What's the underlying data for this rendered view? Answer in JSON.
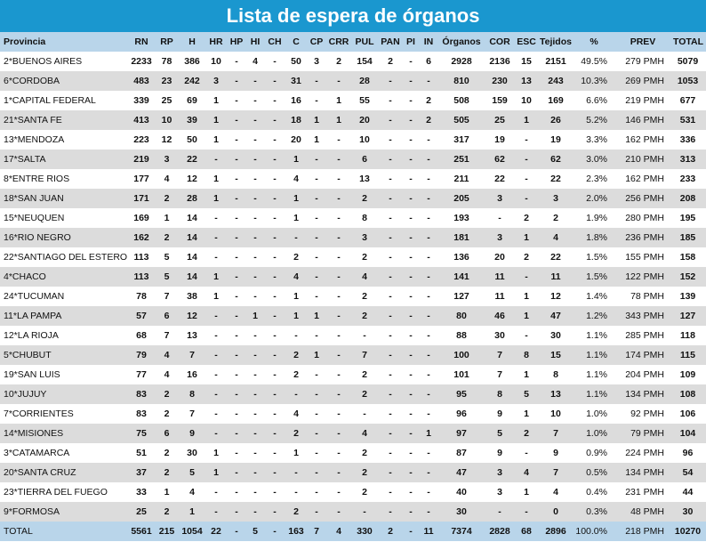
{
  "title": "Lista de espera de órganos",
  "headers": [
    "Provincia",
    "RN",
    "RP",
    "H",
    "HR",
    "HP",
    "HI",
    "CH",
    "C",
    "CP",
    "CRR",
    "PUL",
    "PAN",
    "PI",
    "IN",
    "Órganos",
    "COR",
    "ESC",
    "Tejidos",
    "%",
    "PREV",
    "TOTAL"
  ],
  "rows": [
    [
      "2*BUENOS AIRES",
      "2233",
      "78",
      "386",
      "10",
      "-",
      "4",
      "-",
      "50",
      "3",
      "2",
      "154",
      "2",
      "-",
      "6",
      "2928",
      "2136",
      "15",
      "2151",
      "49.5%",
      "279 PMH",
      "5079"
    ],
    [
      "6*CORDOBA",
      "483",
      "23",
      "242",
      "3",
      "-",
      "-",
      "-",
      "31",
      "-",
      "-",
      "28",
      "-",
      "-",
      "-",
      "810",
      "230",
      "13",
      "243",
      "10.3%",
      "269 PMH",
      "1053"
    ],
    [
      "1*CAPITAL FEDERAL",
      "339",
      "25",
      "69",
      "1",
      "-",
      "-",
      "-",
      "16",
      "-",
      "1",
      "55",
      "-",
      "-",
      "2",
      "508",
      "159",
      "10",
      "169",
      "6.6%",
      "219 PMH",
      "677"
    ],
    [
      "21*SANTA FE",
      "413",
      "10",
      "39",
      "1",
      "-",
      "-",
      "-",
      "18",
      "1",
      "1",
      "20",
      "-",
      "-",
      "2",
      "505",
      "25",
      "1",
      "26",
      "5.2%",
      "146 PMH",
      "531"
    ],
    [
      "13*MENDOZA",
      "223",
      "12",
      "50",
      "1",
      "-",
      "-",
      "-",
      "20",
      "1",
      "-",
      "10",
      "-",
      "-",
      "-",
      "317",
      "19",
      "-",
      "19",
      "3.3%",
      "162 PMH",
      "336"
    ],
    [
      "17*SALTA",
      "219",
      "3",
      "22",
      "-",
      "-",
      "-",
      "-",
      "1",
      "-",
      "-",
      "6",
      "-",
      "-",
      "-",
      "251",
      "62",
      "-",
      "62",
      "3.0%",
      "210 PMH",
      "313"
    ],
    [
      "8*ENTRE RIOS",
      "177",
      "4",
      "12",
      "1",
      "-",
      "-",
      "-",
      "4",
      "-",
      "-",
      "13",
      "-",
      "-",
      "-",
      "211",
      "22",
      "-",
      "22",
      "2.3%",
      "162 PMH",
      "233"
    ],
    [
      "18*SAN JUAN",
      "171",
      "2",
      "28",
      "1",
      "-",
      "-",
      "-",
      "1",
      "-",
      "-",
      "2",
      "-",
      "-",
      "-",
      "205",
      "3",
      "-",
      "3",
      "2.0%",
      "256 PMH",
      "208"
    ],
    [
      "15*NEUQUEN",
      "169",
      "1",
      "14",
      "-",
      "-",
      "-",
      "-",
      "1",
      "-",
      "-",
      "8",
      "-",
      "-",
      "-",
      "193",
      "-",
      "2",
      "2",
      "1.9%",
      "280 PMH",
      "195"
    ],
    [
      "16*RIO NEGRO",
      "162",
      "2",
      "14",
      "-",
      "-",
      "-",
      "-",
      "-",
      "-",
      "-",
      "3",
      "-",
      "-",
      "-",
      "181",
      "3",
      "1",
      "4",
      "1.8%",
      "236 PMH",
      "185"
    ],
    [
      "22*SANTIAGO DEL ESTERO",
      "113",
      "5",
      "14",
      "-",
      "-",
      "-",
      "-",
      "2",
      "-",
      "-",
      "2",
      "-",
      "-",
      "-",
      "136",
      "20",
      "2",
      "22",
      "1.5%",
      "155 PMH",
      "158"
    ],
    [
      "4*CHACO",
      "113",
      "5",
      "14",
      "1",
      "-",
      "-",
      "-",
      "4",
      "-",
      "-",
      "4",
      "-",
      "-",
      "-",
      "141",
      "11",
      "-",
      "11",
      "1.5%",
      "122 PMH",
      "152"
    ],
    [
      "24*TUCUMAN",
      "78",
      "7",
      "38",
      "1",
      "-",
      "-",
      "-",
      "1",
      "-",
      "-",
      "2",
      "-",
      "-",
      "-",
      "127",
      "11",
      "1",
      "12",
      "1.4%",
      "78 PMH",
      "139"
    ],
    [
      "11*LA PAMPA",
      "57",
      "6",
      "12",
      "-",
      "-",
      "1",
      "-",
      "1",
      "1",
      "-",
      "2",
      "-",
      "-",
      "-",
      "80",
      "46",
      "1",
      "47",
      "1.2%",
      "343 PMH",
      "127"
    ],
    [
      "12*LA RIOJA",
      "68",
      "7",
      "13",
      "-",
      "-",
      "-",
      "-",
      "-",
      "-",
      "-",
      "-",
      "-",
      "-",
      "-",
      "88",
      "30",
      "-",
      "30",
      "1.1%",
      "285 PMH",
      "118"
    ],
    [
      "5*CHUBUT",
      "79",
      "4",
      "7",
      "-",
      "-",
      "-",
      "-",
      "2",
      "1",
      "-",
      "7",
      "-",
      "-",
      "-",
      "100",
      "7",
      "8",
      "15",
      "1.1%",
      "174 PMH",
      "115"
    ],
    [
      "19*SAN LUIS",
      "77",
      "4",
      "16",
      "-",
      "-",
      "-",
      "-",
      "2",
      "-",
      "-",
      "2",
      "-",
      "-",
      "-",
      "101",
      "7",
      "1",
      "8",
      "1.1%",
      "204 PMH",
      "109"
    ],
    [
      "10*JUJUY",
      "83",
      "2",
      "8",
      "-",
      "-",
      "-",
      "-",
      "-",
      "-",
      "-",
      "2",
      "-",
      "-",
      "-",
      "95",
      "8",
      "5",
      "13",
      "1.1%",
      "134 PMH",
      "108"
    ],
    [
      "7*CORRIENTES",
      "83",
      "2",
      "7",
      "-",
      "-",
      "-",
      "-",
      "4",
      "-",
      "-",
      "-",
      "-",
      "-",
      "-",
      "96",
      "9",
      "1",
      "10",
      "1.0%",
      "92 PMH",
      "106"
    ],
    [
      "14*MISIONES",
      "75",
      "6",
      "9",
      "-",
      "-",
      "-",
      "-",
      "2",
      "-",
      "-",
      "4",
      "-",
      "-",
      "1",
      "97",
      "5",
      "2",
      "7",
      "1.0%",
      "79 PMH",
      "104"
    ],
    [
      "3*CATAMARCA",
      "51",
      "2",
      "30",
      "1",
      "-",
      "-",
      "-",
      "1",
      "-",
      "-",
      "2",
      "-",
      "-",
      "-",
      "87",
      "9",
      "-",
      "9",
      "0.9%",
      "224 PMH",
      "96"
    ],
    [
      "20*SANTA CRUZ",
      "37",
      "2",
      "5",
      "1",
      "-",
      "-",
      "-",
      "-",
      "-",
      "-",
      "2",
      "-",
      "-",
      "-",
      "47",
      "3",
      "4",
      "7",
      "0.5%",
      "134 PMH",
      "54"
    ],
    [
      "23*TIERRA DEL FUEGO",
      "33",
      "1",
      "4",
      "-",
      "-",
      "-",
      "-",
      "-",
      "-",
      "-",
      "2",
      "-",
      "-",
      "-",
      "40",
      "3",
      "1",
      "4",
      "0.4%",
      "231 PMH",
      "44"
    ],
    [
      "9*FORMOSA",
      "25",
      "2",
      "1",
      "-",
      "-",
      "-",
      "-",
      "2",
      "-",
      "-",
      "-",
      "-",
      "-",
      "-",
      "30",
      "-",
      "-",
      "0",
      "0.3%",
      "48 PMH",
      "30"
    ]
  ],
  "total": [
    "TOTAL",
    "5561",
    "215",
    "1054",
    "22",
    "-",
    "5",
    "-",
    "163",
    "7",
    "4",
    "330",
    "2",
    "-",
    "11",
    "7374",
    "2828",
    "68",
    "2896",
    "100.0%",
    "218 PMH",
    "10270"
  ]
}
